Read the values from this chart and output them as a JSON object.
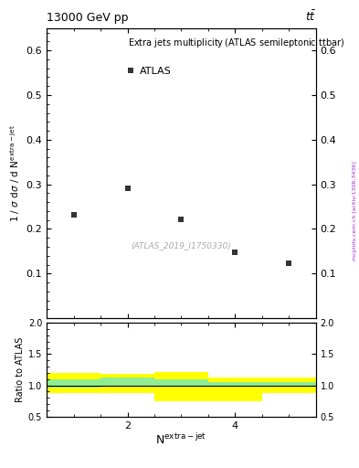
{
  "title_left": "13000 GeV pp",
  "title_right": "t$\\bar{t}$",
  "main_title": "Extra jets multiplicity",
  "main_title_sub": "(ATLAS semileptonic ttbar)",
  "legend_label": "ATLAS",
  "ylabel_main": "1 / σ dσ / d N$^{\\mathrm{extra-jet}}$",
  "ylabel_ratio": "Ratio to ATLAS",
  "watermark": "(ATLAS_2019_I1750330)",
  "right_label": "mcplots.cern.ch [arXiv:1306.3436]",
  "data_x": [
    1,
    2,
    3,
    4,
    5
  ],
  "data_y": [
    0.232,
    0.292,
    0.222,
    0.148,
    0.123
  ],
  "ylim_main": [
    0.0,
    0.65
  ],
  "ylim_ratio": [
    0.5,
    2.0
  ],
  "xlim": [
    0.5,
    5.5
  ],
  "yellow_steps": {
    "x": [
      0.5,
      1.5,
      1.5,
      2.5,
      2.5,
      3.5,
      3.5,
      4.5,
      4.5,
      5.5
    ],
    "y_lo": [
      0.88,
      0.88,
      0.88,
      0.88,
      0.75,
      0.75,
      0.75,
      0.75,
      0.88,
      0.88
    ],
    "y_hi": [
      1.2,
      1.2,
      1.18,
      1.18,
      1.22,
      1.22,
      1.12,
      1.12,
      1.12,
      1.12
    ]
  },
  "green_steps": {
    "x": [
      0.5,
      1.5,
      1.5,
      2.5,
      2.5,
      3.5,
      3.5,
      4.5,
      4.5,
      5.5
    ],
    "y_lo": [
      0.96,
      0.96,
      0.98,
      0.98,
      0.98,
      0.98,
      0.98,
      0.98,
      0.98,
      0.98
    ],
    "y_hi": [
      1.1,
      1.1,
      1.12,
      1.12,
      1.1,
      1.1,
      1.05,
      1.05,
      1.05,
      1.05
    ]
  },
  "marker_color": "#333333",
  "marker_size": 5,
  "yticks_main": [
    0.1,
    0.2,
    0.3,
    0.4,
    0.5,
    0.6
  ],
  "yticks_ratio": [
    0.5,
    1.0,
    1.5,
    2.0
  ],
  "xticks": [
    2,
    4
  ]
}
